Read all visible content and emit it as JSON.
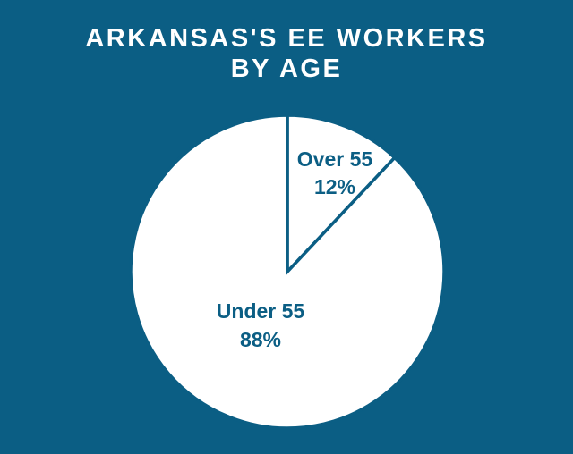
{
  "chart_data": {
    "type": "pie",
    "title_lines": [
      "ARKANSAS'S EE WORKERS",
      "BY AGE"
    ],
    "slices": [
      {
        "label": "Over 55",
        "value": 12,
        "value_label": "12%"
      },
      {
        "label": "Under 55",
        "value": 88,
        "value_label": "88%"
      }
    ],
    "colors": {
      "background": "#0b5e84",
      "slice_fill": "#ffffff",
      "slice_stroke": "#0b5e84",
      "label": "#0b5e84"
    }
  }
}
